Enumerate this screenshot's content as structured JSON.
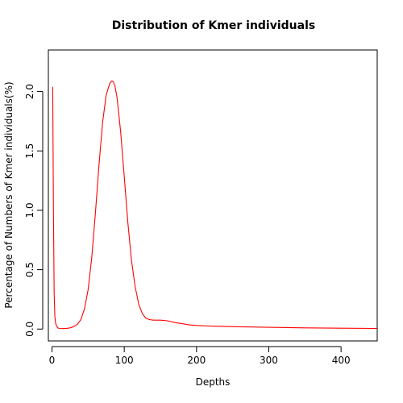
{
  "chart_data": {
    "type": "line",
    "title": "Distribution of Kmer individuals",
    "xlabel": "Depths",
    "ylabel": "Percentage of Numbers of Kmer individuals(%)",
    "xlim": [
      -5,
      450
    ],
    "ylim": [
      -0.1,
      2.35
    ],
    "xticks": [
      0,
      100,
      200,
      300,
      400
    ],
    "yticks": [
      0.0,
      0.5,
      1.0,
      1.5,
      2.0
    ],
    "ytick_labels": [
      "0.0",
      "0.5",
      "1.0",
      "1.5",
      "2.0"
    ],
    "grid": false,
    "legend": "none",
    "series": [
      {
        "color": "#ff0000",
        "x": [
          1,
          2,
          3,
          4,
          5,
          6,
          8,
          10,
          15,
          20,
          25,
          30,
          35,
          40,
          45,
          50,
          55,
          60,
          65,
          70,
          75,
          80,
          83,
          85,
          87,
          90,
          95,
          100,
          105,
          110,
          115,
          120,
          125,
          130,
          135,
          140,
          145,
          150,
          160,
          170,
          180,
          190,
          200,
          220,
          250,
          300,
          350,
          400,
          450
        ],
        "y": [
          2.04,
          1.0,
          0.3,
          0.1,
          0.05,
          0.03,
          0.01,
          0.005,
          0.004,
          0.006,
          0.01,
          0.02,
          0.04,
          0.08,
          0.17,
          0.33,
          0.6,
          0.97,
          1.38,
          1.74,
          1.97,
          2.07,
          2.09,
          2.08,
          2.05,
          1.95,
          1.66,
          1.28,
          0.9,
          0.58,
          0.36,
          0.21,
          0.13,
          0.09,
          0.08,
          0.075,
          0.075,
          0.075,
          0.07,
          0.055,
          0.045,
          0.035,
          0.03,
          0.025,
          0.02,
          0.015,
          0.01,
          0.007,
          0.005
        ]
      }
    ]
  }
}
